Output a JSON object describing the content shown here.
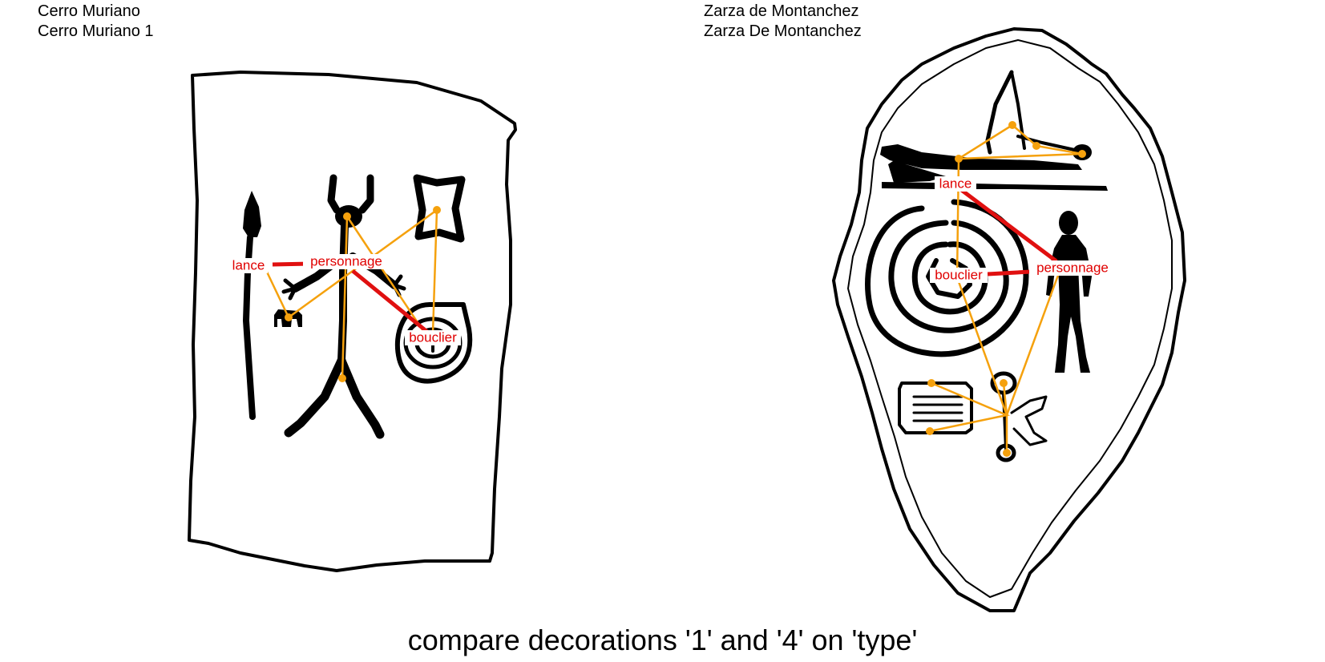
{
  "left": {
    "site": "Cerro Muriano",
    "decoration": "Cerro Muriano 1"
  },
  "right": {
    "site": "Zarza de Montanchez",
    "decoration": "Zarza De Montanchez"
  },
  "caption": "compare decorations '1' and '4' on 'type'",
  "labels": {
    "left_lance": "lance",
    "left_personnage": "personnage",
    "left_bouclier": "bouclier",
    "right_lance": "lance",
    "right_bouclier": "bouclier",
    "right_personnage": "personnage"
  },
  "colors": {
    "graph_edge": "#f5a10d",
    "relation": "#e01010",
    "label": "#e00000",
    "ink": "#000000"
  }
}
